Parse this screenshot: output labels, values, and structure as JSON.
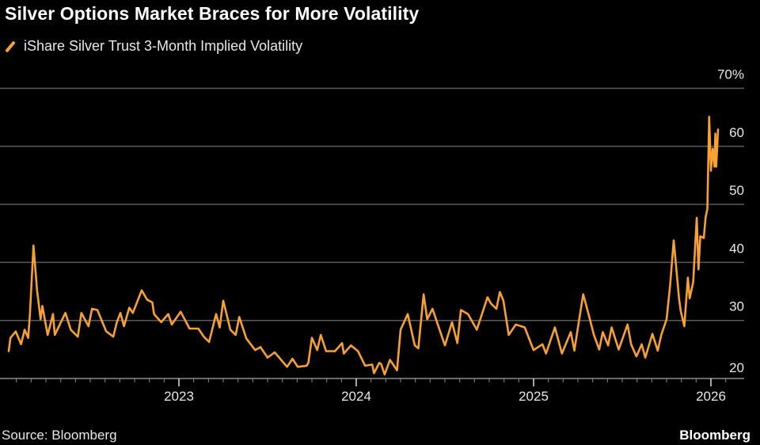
{
  "title": "Silver Options Market Braces for More Volatility",
  "source": "Source: Bloomberg",
  "brand": "Bloomberg",
  "colors": {
    "series": "#f7a034",
    "grid": "#5a5a5a",
    "background": "#000000"
  },
  "chart_data": {
    "type": "line",
    "title": "Silver Options Market Braces for More Volatility",
    "xlabel": "",
    "ylabel": "",
    "xlim": [
      2022.0,
      2026.15
    ],
    "ylim": [
      20,
      70
    ],
    "grid": true,
    "legend_placement": "top-left",
    "x_ticks": [
      {
        "value": 2023,
        "label": "2023"
      },
      {
        "value": 2024,
        "label": "2024"
      },
      {
        "value": 2025,
        "label": "2025"
      },
      {
        "value": 2026,
        "label": "2026"
      }
    ],
    "y_ticks": [
      {
        "value": 20,
        "label": "20"
      },
      {
        "value": 30,
        "label": "30"
      },
      {
        "value": 40,
        "label": "40"
      },
      {
        "value": 50,
        "label": "50"
      },
      {
        "value": 60,
        "label": "60"
      },
      {
        "value": 70,
        "label": "70%"
      }
    ],
    "series": [
      {
        "name": "iShare Silver Trust 3-Month Implied Volatility",
        "color": "#f7a034",
        "points": [
          [
            2022.04,
            24.7
          ],
          [
            2022.05,
            27.0
          ],
          [
            2022.08,
            28.1
          ],
          [
            2022.11,
            25.9
          ],
          [
            2022.13,
            28.4
          ],
          [
            2022.15,
            27.0
          ],
          [
            2022.16,
            31.1
          ],
          [
            2022.18,
            42.9
          ],
          [
            2022.2,
            35.2
          ],
          [
            2022.22,
            30.2
          ],
          [
            2022.23,
            32.5
          ],
          [
            2022.26,
            27.5
          ],
          [
            2022.29,
            31.1
          ],
          [
            2022.3,
            27.5
          ],
          [
            2022.36,
            31.3
          ],
          [
            2022.39,
            28.4
          ],
          [
            2022.43,
            27.2
          ],
          [
            2022.45,
            31.3
          ],
          [
            2022.49,
            29.0
          ],
          [
            2022.51,
            32.0
          ],
          [
            2022.54,
            31.8
          ],
          [
            2022.59,
            28.1
          ],
          [
            2022.63,
            27.2
          ],
          [
            2022.65,
            29.7
          ],
          [
            2022.67,
            31.3
          ],
          [
            2022.69,
            29.0
          ],
          [
            2022.72,
            32.2
          ],
          [
            2022.74,
            31.3
          ],
          [
            2022.79,
            35.2
          ],
          [
            2022.82,
            33.6
          ],
          [
            2022.85,
            33.1
          ],
          [
            2022.86,
            31.1
          ],
          [
            2022.9,
            29.7
          ],
          [
            2022.94,
            31.1
          ],
          [
            2022.96,
            29.3
          ],
          [
            2023.01,
            31.5
          ],
          [
            2023.06,
            28.6
          ],
          [
            2023.11,
            28.6
          ],
          [
            2023.14,
            27.2
          ],
          [
            2023.17,
            26.3
          ],
          [
            2023.21,
            31.1
          ],
          [
            2023.23,
            28.8
          ],
          [
            2023.25,
            33.4
          ],
          [
            2023.29,
            28.4
          ],
          [
            2023.32,
            27.5
          ],
          [
            2023.34,
            30.6
          ],
          [
            2023.38,
            26.9
          ],
          [
            2023.43,
            24.9
          ],
          [
            2023.46,
            25.4
          ],
          [
            2023.5,
            23.6
          ],
          [
            2023.54,
            24.5
          ],
          [
            2023.61,
            22.0
          ],
          [
            2023.64,
            23.4
          ],
          [
            2023.67,
            22.0
          ],
          [
            2023.72,
            22.2
          ],
          [
            2023.73,
            22.7
          ],
          [
            2023.75,
            27.0
          ],
          [
            2023.78,
            24.9
          ],
          [
            2023.8,
            27.5
          ],
          [
            2023.83,
            24.7
          ],
          [
            2023.88,
            24.7
          ],
          [
            2023.92,
            26.1
          ],
          [
            2023.93,
            24.3
          ],
          [
            2023.97,
            25.7
          ],
          [
            2024.01,
            24.7
          ],
          [
            2024.05,
            22.2
          ],
          [
            2024.09,
            22.4
          ],
          [
            2024.1,
            20.9
          ],
          [
            2024.13,
            22.7
          ],
          [
            2024.14,
            22.5
          ],
          [
            2024.16,
            20.7
          ],
          [
            2024.19,
            23.2
          ],
          [
            2024.23,
            21.4
          ],
          [
            2024.25,
            28.4
          ],
          [
            2024.28,
            30.4
          ],
          [
            2024.29,
            31.1
          ],
          [
            2024.33,
            25.7
          ],
          [
            2024.35,
            25.2
          ],
          [
            2024.38,
            34.5
          ],
          [
            2024.4,
            30.2
          ],
          [
            2024.43,
            32.0
          ],
          [
            2024.46,
            29.3
          ],
          [
            2024.5,
            25.7
          ],
          [
            2024.54,
            29.7
          ],
          [
            2024.57,
            26.1
          ],
          [
            2024.59,
            31.8
          ],
          [
            2024.63,
            31.1
          ],
          [
            2024.68,
            28.4
          ],
          [
            2024.74,
            34.0
          ],
          [
            2024.76,
            32.9
          ],
          [
            2024.79,
            32.0
          ],
          [
            2024.81,
            34.9
          ],
          [
            2024.83,
            33.4
          ],
          [
            2024.86,
            27.5
          ],
          [
            2024.9,
            29.3
          ],
          [
            2024.95,
            28.8
          ],
          [
            2025.0,
            24.9
          ],
          [
            2025.05,
            25.9
          ],
          [
            2025.07,
            24.3
          ],
          [
            2025.12,
            28.8
          ],
          [
            2025.16,
            24.3
          ],
          [
            2025.21,
            28.0
          ],
          [
            2025.23,
            24.8
          ],
          [
            2025.26,
            30.7
          ],
          [
            2025.28,
            34.5
          ],
          [
            2025.31,
            31.1
          ],
          [
            2025.34,
            27.5
          ],
          [
            2025.37,
            25.0
          ],
          [
            2025.39,
            28.0
          ],
          [
            2025.42,
            25.7
          ],
          [
            2025.44,
            28.8
          ],
          [
            2025.48,
            25.0
          ],
          [
            2025.53,
            29.3
          ],
          [
            2025.55,
            25.9
          ],
          [
            2025.58,
            23.8
          ],
          [
            2025.61,
            25.9
          ],
          [
            2025.63,
            23.6
          ],
          [
            2025.67,
            27.7
          ],
          [
            2025.7,
            24.8
          ],
          [
            2025.72,
            27.5
          ],
          [
            2025.75,
            30.2
          ],
          [
            2025.77,
            36.1
          ],
          [
            2025.79,
            43.8
          ],
          [
            2025.82,
            33.8
          ],
          [
            2025.83,
            31.6
          ],
          [
            2025.85,
            29.0
          ],
          [
            2025.87,
            37.4
          ],
          [
            2025.88,
            33.8
          ],
          [
            2025.9,
            36.6
          ],
          [
            2025.92,
            47.7
          ],
          [
            2025.93,
            38.8
          ],
          [
            2025.94,
            44.5
          ],
          [
            2025.96,
            44.2
          ],
          [
            2025.97,
            47.8
          ],
          [
            2025.98,
            49.2
          ],
          [
            2025.99,
            65.1
          ],
          [
            2026.0,
            55.8
          ],
          [
            2026.01,
            59.6
          ],
          [
            2026.02,
            56.5
          ],
          [
            2026.025,
            62.2
          ],
          [
            2026.03,
            56.5
          ],
          [
            2026.04,
            62.9
          ]
        ]
      }
    ]
  }
}
